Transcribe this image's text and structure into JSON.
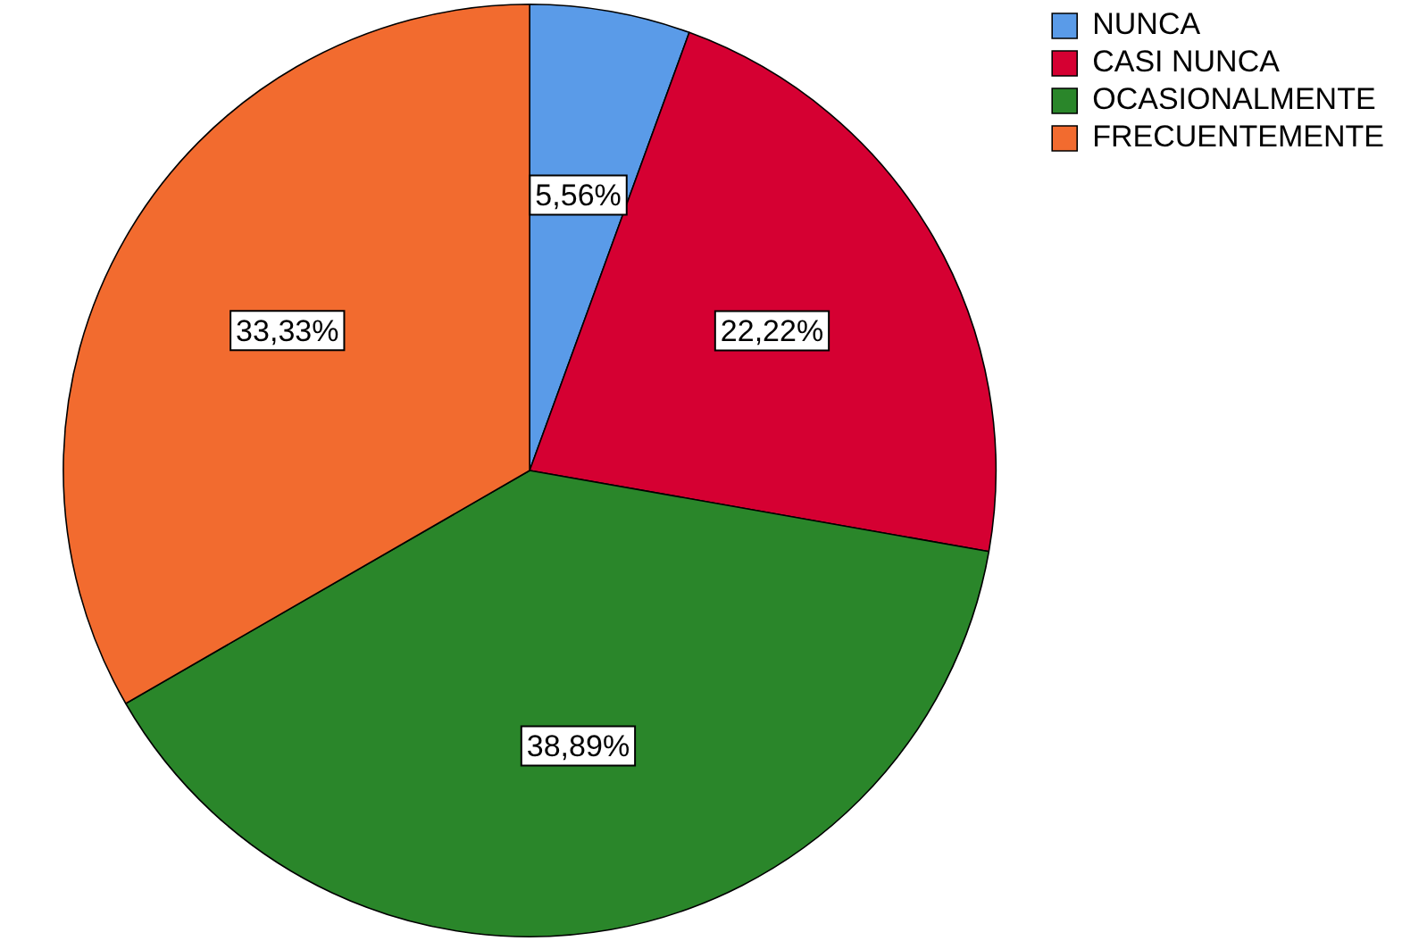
{
  "chart_data": {
    "type": "pie",
    "categories": [
      "NUNCA",
      "CASI NUNCA",
      "OCASIONALMENTE",
      "FRECUENTEMENTE"
    ],
    "values": [
      5.56,
      22.22,
      38.89,
      33.33
    ],
    "colors": [
      "#5a9be8",
      "#d50032",
      "#2a862a",
      "#f26b2f"
    ],
    "value_labels": [
      "5,56%",
      "22,22%",
      "38,89%",
      "33,33%"
    ],
    "legend": "top right"
  }
}
